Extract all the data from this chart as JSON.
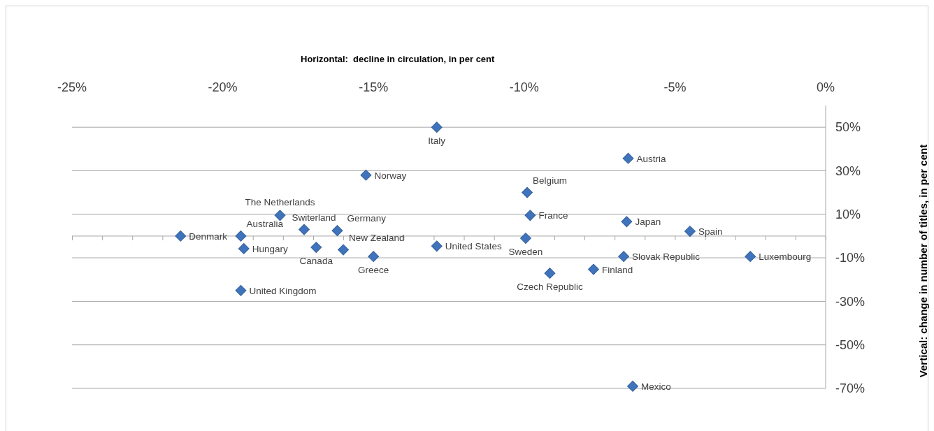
{
  "chart_data": {
    "type": "scatter",
    "xlabel": "Horizontal:  decline in circulation, in per cent",
    "ylabel": "Vertical: change in number of titles, in per cent",
    "xlim": [
      -25,
      0
    ],
    "xticks": [
      {
        "value": -25,
        "label": "-25%"
      },
      {
        "value": -20,
        "label": "-20%"
      },
      {
        "value": -15,
        "label": "-15%"
      },
      {
        "value": -10,
        "label": "-10%"
      },
      {
        "value": -5,
        "label": "-5%"
      },
      {
        "value": 0,
        "label": "0%"
      }
    ],
    "ylim": [
      -70,
      60
    ],
    "yticks": [
      {
        "value": 50,
        "label": "50%"
      },
      {
        "value": 30,
        "label": "30%"
      },
      {
        "value": 10,
        "label": "10%"
      },
      {
        "value": -10,
        "label": "-10%"
      },
      {
        "value": -30,
        "label": "-30%"
      },
      {
        "value": -50,
        "label": "-50%"
      },
      {
        "value": -70,
        "label": "-70%"
      }
    ],
    "grid": "y",
    "marker": "diamond",
    "series": [
      {
        "color": "#3f74bd",
        "x": [
          -12.9,
          -6.55,
          -15.25,
          -9.9,
          -18.1,
          -9.8,
          -17.3,
          -16.2,
          -6.6,
          -4.5,
          -19.4,
          -21.4,
          -9.95,
          -12.9,
          -19.3,
          -16.9,
          -16.0,
          -15.0,
          -6.7,
          -2.5,
          -7.7,
          -9.15,
          -19.4,
          -6.4
        ],
        "values": [
          50,
          35.7,
          28,
          20,
          9.5,
          9.5,
          3,
          2.5,
          6.6,
          2.2,
          0,
          0,
          -1,
          -4.6,
          -5.8,
          -5.2,
          -6.3,
          -9.4,
          -9.4,
          -9.4,
          -15.3,
          -17.1,
          -25,
          -69
        ]
      }
    ],
    "annotations": [
      {
        "text": "Italy",
        "x": -12.9,
        "y": 50
      },
      {
        "text": "Austria",
        "x": -6.55,
        "y": 35.7
      },
      {
        "text": "Norway",
        "x": -15.25,
        "y": 28
      },
      {
        "text": "Belgium",
        "x": -9.9,
        "y": 20
      },
      {
        "text": "The Netherlands",
        "x": -18.1,
        "y": 9.5
      },
      {
        "text": "France",
        "x": -9.8,
        "y": 9.5
      },
      {
        "text": "Switerland",
        "x": -17.3,
        "y": 3
      },
      {
        "text": "Germany",
        "x": -16.2,
        "y": 2.5
      },
      {
        "text": "Japan",
        "x": -6.6,
        "y": 6.6
      },
      {
        "text": "Spain",
        "x": -4.5,
        "y": 2.2
      },
      {
        "text": "Australia",
        "x": -19.4,
        "y": 0
      },
      {
        "text": "Denmark",
        "x": -21.4,
        "y": 0
      },
      {
        "text": "Sweden",
        "x": -9.95,
        "y": -1
      },
      {
        "text": "United States",
        "x": -12.9,
        "y": -4.6
      },
      {
        "text": "Hungary",
        "x": -19.3,
        "y": -5.8
      },
      {
        "text": "Canada",
        "x": -16.9,
        "y": -5.2
      },
      {
        "text": "New Zealand",
        "x": -16.0,
        "y": -6.3
      },
      {
        "text": "Greece",
        "x": -15.0,
        "y": -9.4
      },
      {
        "text": "Slovak Republic",
        "x": -6.7,
        "y": -9.4
      },
      {
        "text": "Luxembourg",
        "x": -2.5,
        "y": -9.4
      },
      {
        "text": "Finland",
        "x": -7.7,
        "y": -15.3
      },
      {
        "text": "Czech Republic",
        "x": -9.15,
        "y": -17.1
      },
      {
        "text": "United Kingdom",
        "x": -19.4,
        "y": -25
      },
      {
        "text": "Mexico",
        "x": -6.4,
        "y": -69
      }
    ]
  }
}
